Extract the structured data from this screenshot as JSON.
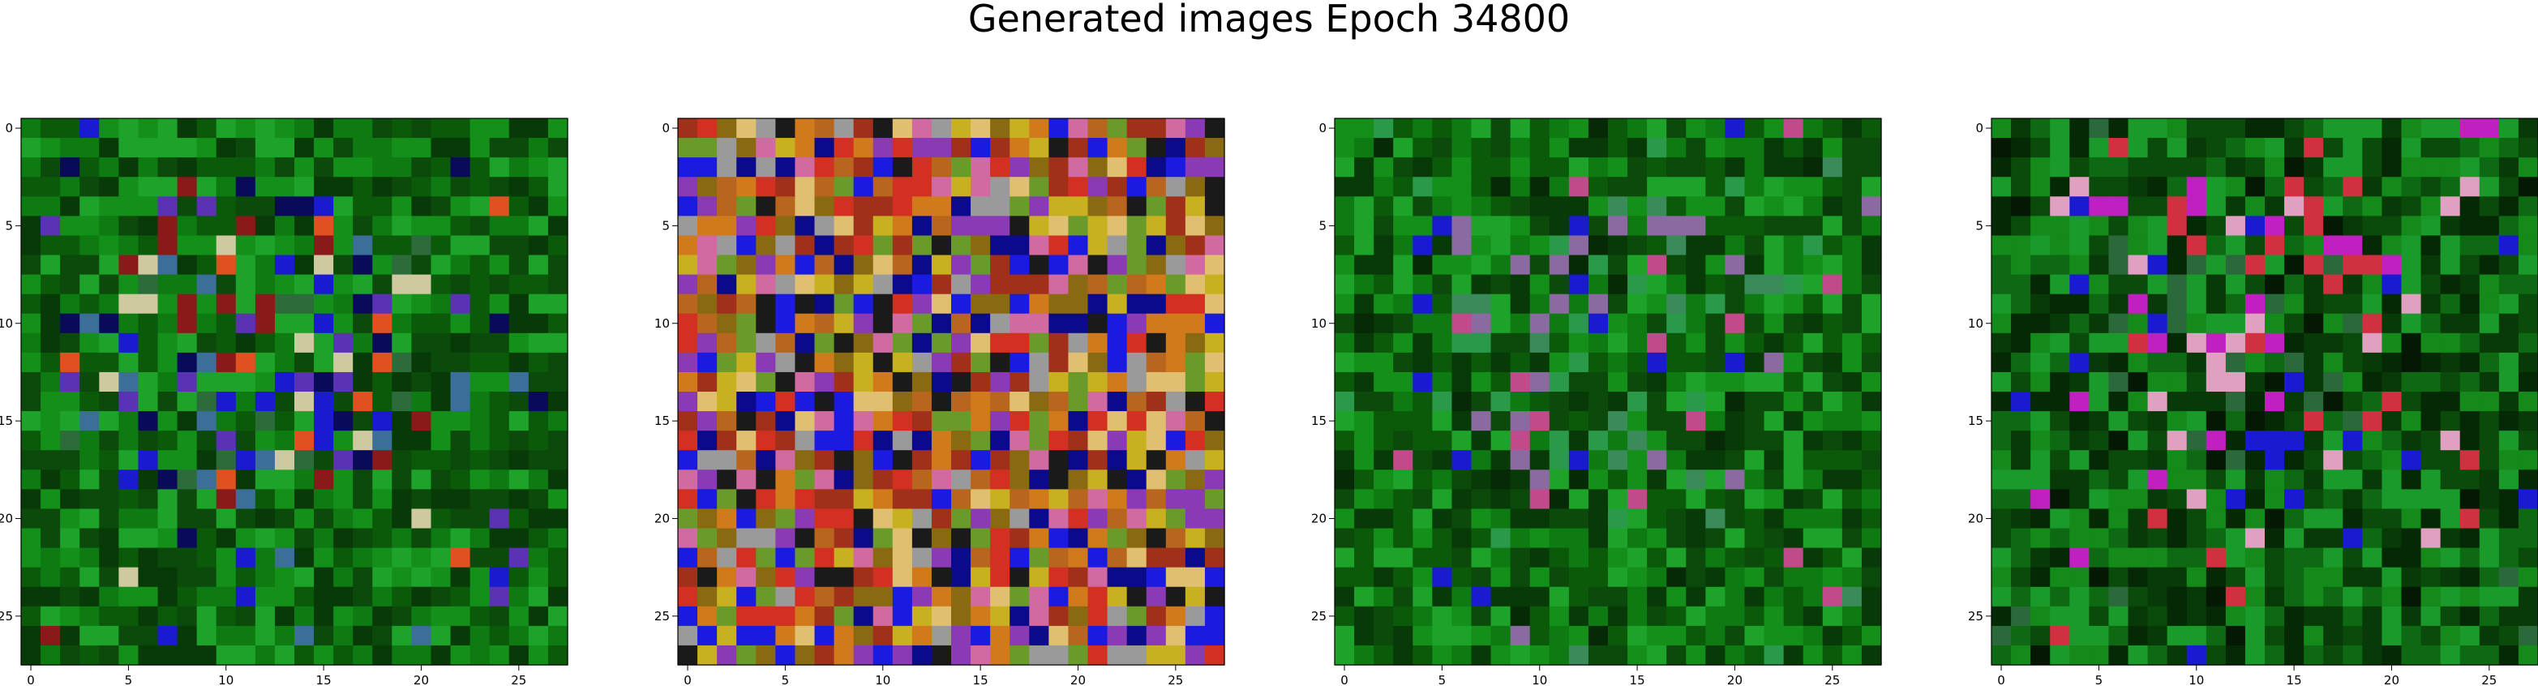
{
  "title": "Generated images Epoch 34800",
  "chart_data": [
    {
      "type": "heatmap",
      "title": "",
      "xlabel": "",
      "ylabel": "",
      "xlim": [
        0,
        27
      ],
      "ylim": [
        27,
        0
      ],
      "grid": false,
      "xticks": [
        0,
        5,
        10,
        15,
        20,
        25
      ],
      "yticks": [
        0,
        5,
        10,
        15,
        20,
        25
      ],
      "palette": [
        "#0a5a0a",
        "#0e7a12",
        "#138f1a",
        "#0b4a0b",
        "#073a07",
        "#1ea32a",
        "#2c6b3a",
        "#0a0a5a",
        "#1a1ad0",
        "#5a32b4",
        "#3c6e9a",
        "#cfc9a0",
        "#e05020",
        "#8a1a1a"
      ],
      "tone": "green-dominant"
    },
    {
      "type": "heatmap",
      "title": "",
      "xlabel": "",
      "ylabel": "",
      "xlim": [
        0,
        27
      ],
      "ylim": [
        27,
        0
      ],
      "grid": false,
      "xticks": [
        0,
        5,
        10,
        15,
        20,
        25
      ],
      "yticks": [
        0,
        5,
        10,
        15,
        20,
        25
      ],
      "palette": [
        "#b8661e",
        "#d07a1c",
        "#c8b020",
        "#8a6a10",
        "#a0301a",
        "#d23020",
        "#0a0a8a",
        "#1a1ae0",
        "#8a3ab4",
        "#d06aa0",
        "#6a9a2a",
        "#9a9a9a",
        "#1a1a1a",
        "#e0c070"
      ],
      "tone": "multicolor"
    },
    {
      "type": "heatmap",
      "title": "",
      "xlabel": "",
      "ylabel": "",
      "xlim": [
        0,
        27
      ],
      "ylim": [
        27,
        0
      ],
      "grid": false,
      "xticks": [
        0,
        5,
        10,
        15,
        20,
        25
      ],
      "yticks": [
        0,
        5,
        10,
        15,
        20,
        25
      ],
      "palette": [
        "#0a5a0a",
        "#0e7a12",
        "#138f1a",
        "#0b4a0b",
        "#073a07",
        "#1ea32a",
        "#3a8a5a",
        "#062a06",
        "#2a9a4a",
        "#8a6aa0",
        "#c04a8a",
        "#1a1ad0"
      ],
      "tone": "green-dominant"
    },
    {
      "type": "heatmap",
      "title": "",
      "xlabel": "",
      "ylabel": "",
      "xlim": [
        0,
        27
      ],
      "ylim": [
        27,
        0
      ],
      "grid": false,
      "xticks": [
        0,
        5,
        10,
        15,
        20,
        25
      ],
      "yticks": [
        0,
        5,
        10,
        15,
        20,
        25
      ],
      "palette": [
        "#0a4a0a",
        "#0e6a12",
        "#138a1a",
        "#073a07",
        "#052805",
        "#1a9a2a",
        "#041804",
        "#2a6a3a",
        "#d03040",
        "#e0a0c0",
        "#c020c0",
        "#1a1ad0"
      ],
      "tone": "dark-green"
    }
  ]
}
